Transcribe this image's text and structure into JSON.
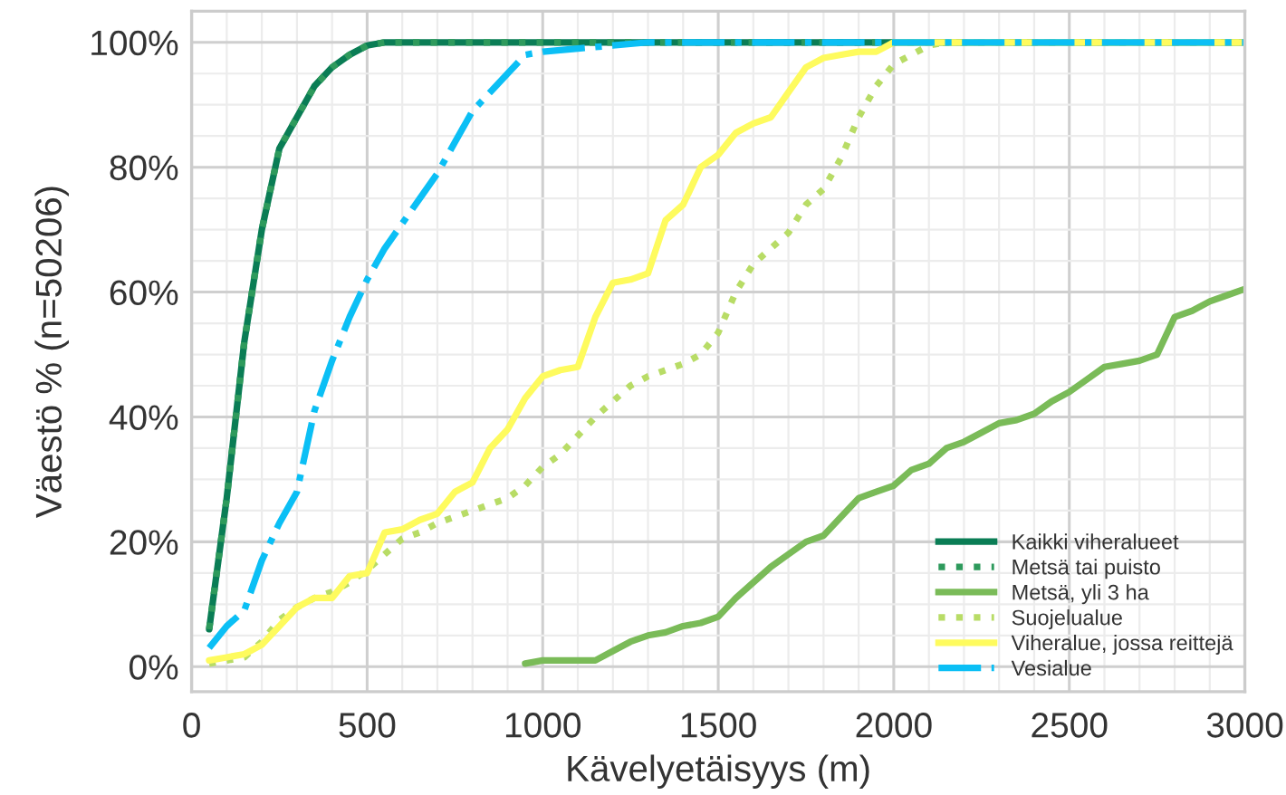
{
  "chart_data": {
    "type": "line",
    "xlabel": "Kävelyetäisyys (m)",
    "ylabel": "Väestö % (n=50206)",
    "xlim": [
      0,
      3000
    ],
    "xticks": [
      0,
      500,
      1000,
      1500,
      2000,
      2500,
      3000
    ],
    "ylim": [
      -4,
      105
    ],
    "yticks": [
      {
        "value": 0,
        "label": "0%"
      },
      {
        "value": 20,
        "label": "20%"
      },
      {
        "value": 40,
        "label": "40%"
      },
      {
        "value": 60,
        "label": "60%"
      },
      {
        "value": 80,
        "label": "80%"
      },
      {
        "value": 100,
        "label": "100%"
      }
    ],
    "grid": true,
    "legend": "lower right",
    "series": [
      {
        "name": "Kaikki viheralueet",
        "color": "#0a7d55",
        "line_style": "solid",
        "x": [
          50,
          100,
          150,
          200,
          250,
          300,
          350,
          400,
          450,
          500,
          550,
          3000
        ],
        "values": [
          6,
          27,
          52,
          70,
          83,
          88,
          93,
          96,
          98,
          99.5,
          100,
          100
        ]
      },
      {
        "name": "Metsä tai puisto",
        "color": "#2e9a5c",
        "line_style": "dotted",
        "x": [
          50,
          100,
          150,
          200,
          250,
          300,
          350,
          400,
          450,
          500,
          550,
          3000
        ],
        "values": [
          6,
          27,
          52,
          70,
          83,
          88,
          93,
          96,
          98,
          99.5,
          100,
          100
        ]
      },
      {
        "name": "Metsä, yli 3 ha",
        "color": "#7abb58",
        "line_style": "solid",
        "x": [
          950,
          1000,
          1050,
          1100,
          1150,
          1200,
          1250,
          1300,
          1350,
          1400,
          1450,
          1500,
          1550,
          1600,
          1650,
          1700,
          1750,
          1800,
          1850,
          1900,
          1950,
          2000,
          2050,
          2100,
          2150,
          2200,
          2250,
          2300,
          2350,
          2400,
          2450,
          2500,
          2550,
          2600,
          2650,
          2700,
          2750,
          2800,
          2850,
          2900,
          2950,
          3000
        ],
        "values": [
          0.5,
          1,
          1,
          1,
          1,
          2.5,
          4,
          5,
          5.5,
          6.5,
          7,
          8,
          11,
          13.5,
          16,
          18,
          20,
          21,
          24,
          27,
          28,
          29,
          31.5,
          32.5,
          35,
          36,
          37.5,
          39,
          39.5,
          40.5,
          42.5,
          44,
          46,
          48,
          48.5,
          49,
          50,
          56,
          57,
          58.5,
          59.5,
          60.5
        ]
      },
      {
        "name": "Suojelualue",
        "color": "#b8dc66",
        "line_style": "dotted",
        "x": [
          50,
          100,
          150,
          200,
          250,
          300,
          350,
          400,
          450,
          500,
          550,
          600,
          650,
          700,
          750,
          800,
          850,
          900,
          950,
          1000,
          1050,
          1100,
          1150,
          1200,
          1250,
          1300,
          1350,
          1400,
          1450,
          1500,
          1550,
          1600,
          1650,
          1700,
          1750,
          1800,
          1850,
          1900,
          1950,
          2000,
          2050,
          2100,
          2150,
          3000
        ],
        "values": [
          0.5,
          1,
          1.5,
          4,
          7.5,
          9.5,
          11,
          12,
          13.5,
          15.5,
          18,
          20.5,
          21.5,
          23,
          24,
          25,
          26,
          27,
          29,
          32,
          34,
          37,
          40,
          42.5,
          45,
          46.5,
          47.5,
          48.5,
          50,
          53.5,
          60,
          64.5,
          67,
          69.5,
          74,
          76.5,
          81.5,
          88,
          93,
          96.5,
          98,
          99.5,
          100,
          100
        ]
      },
      {
        "name": "Viheralue, jossa reittejä",
        "color": "#fefb5e",
        "line_style": "solid",
        "x": [
          50,
          100,
          150,
          200,
          250,
          300,
          350,
          400,
          450,
          500,
          550,
          600,
          650,
          700,
          750,
          800,
          850,
          900,
          950,
          1000,
          1050,
          1100,
          1150,
          1200,
          1250,
          1300,
          1350,
          1400,
          1450,
          1500,
          1550,
          1600,
          1650,
          1700,
          1750,
          1800,
          1850,
          1900,
          1950,
          2000,
          3000
        ],
        "values": [
          1,
          1.5,
          2,
          3.5,
          6.5,
          9.5,
          11,
          11,
          14.5,
          15,
          21.5,
          22,
          23.5,
          24.5,
          28,
          29.5,
          35,
          38,
          43,
          46.5,
          47.5,
          48,
          56,
          61.5,
          62,
          63,
          71.5,
          74,
          80,
          82,
          85.5,
          87,
          88,
          92,
          96,
          97.5,
          98,
          98.5,
          98.5,
          100,
          100
        ]
      },
      {
        "name": "Vesialue",
        "color": "#0bbff5",
        "line_style": "dashdot",
        "x": [
          50,
          100,
          150,
          200,
          250,
          300,
          350,
          400,
          450,
          500,
          550,
          600,
          650,
          700,
          750,
          800,
          850,
          900,
          950,
          1000,
          1100,
          1200,
          1300,
          3000
        ],
        "values": [
          3,
          6.5,
          9,
          17,
          23,
          28,
          41,
          49,
          56,
          62,
          67,
          71,
          75,
          79,
          84,
          89,
          92,
          95,
          98,
          98.5,
          99,
          99.5,
          100,
          100
        ]
      }
    ]
  }
}
